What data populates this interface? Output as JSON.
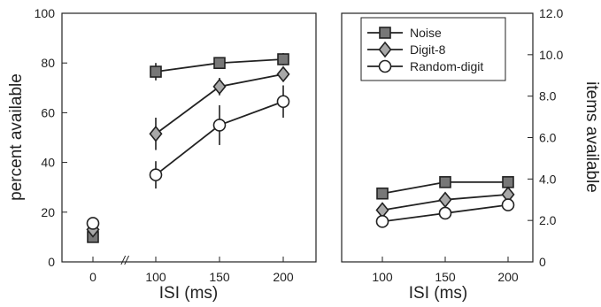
{
  "chart_data": [
    {
      "type": "line",
      "ylabel": "percent available",
      "xlabel": "ISI (ms)",
      "ylim": [
        0,
        100
      ],
      "yticks": [
        "0",
        "20",
        "40",
        "60",
        "80",
        "100"
      ],
      "xticks": [
        "0",
        "100",
        "150",
        "200"
      ],
      "axis_break": "//",
      "series": [
        {
          "name": "Noise",
          "marker": "square",
          "fill": "#777777",
          "x": [
            100,
            150,
            200
          ],
          "y": [
            76.5,
            80,
            81.5
          ],
          "err": [
            3.5,
            1.5,
            2.5
          ],
          "baseline": 10
        },
        {
          "name": "Digit-8",
          "marker": "diamond",
          "fill": "#a8a8a8",
          "x": [
            100,
            150,
            200
          ],
          "y": [
            51.5,
            70.5,
            75.5
          ],
          "err": [
            6.5,
            3.5,
            3.0
          ],
          "baseline": 13
        },
        {
          "name": "Random-digit",
          "marker": "circle",
          "fill": "#ffffff",
          "x": [
            100,
            150,
            200
          ],
          "y": [
            35,
            55,
            64.5
          ],
          "err": [
            5.5,
            8.0,
            6.5
          ],
          "baseline": 15.5
        }
      ]
    },
    {
      "type": "line",
      "ylabel": "items available",
      "xlabel": "ISI (ms)",
      "ylim": [
        0,
        12
      ],
      "yticks": [
        "0",
        "2.0",
        "4.0",
        "6.0",
        "8.0",
        "10.0",
        "12.0"
      ],
      "xticks": [
        "100",
        "150",
        "200"
      ],
      "legend": [
        "Noise",
        "Digit-8",
        "Random-digit"
      ],
      "legend_position": "top-left",
      "series": [
        {
          "name": "Noise",
          "marker": "square",
          "fill": "#777777",
          "x": [
            100,
            150,
            200
          ],
          "y": [
            3.3,
            3.85,
            3.85
          ],
          "err": [
            0.15,
            0.1,
            0.2
          ]
        },
        {
          "name": "Digit-8",
          "marker": "diamond",
          "fill": "#a8a8a8",
          "x": [
            100,
            150,
            200
          ],
          "y": [
            2.5,
            3.0,
            3.25
          ],
          "err": [
            0.15,
            0.1,
            0.15
          ]
        },
        {
          "name": "Random-digit",
          "marker": "circle",
          "fill": "#ffffff",
          "x": [
            100,
            150,
            200
          ],
          "y": [
            1.95,
            2.35,
            2.75
          ],
          "err": [
            0.1,
            0.1,
            0.1
          ]
        }
      ]
    }
  ]
}
